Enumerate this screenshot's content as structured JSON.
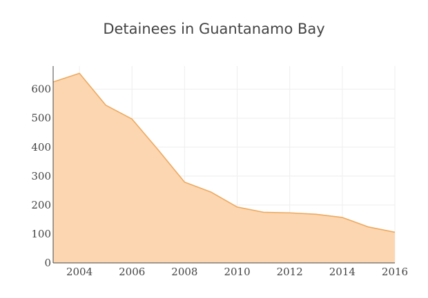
{
  "chart_data": {
    "type": "area",
    "title": "Detainees in Guantanamo Bay",
    "xlabel": "",
    "ylabel": "",
    "x": [
      2003,
      2004,
      2005,
      2006,
      2007,
      2008,
      2009,
      2010,
      2011,
      2012,
      2013,
      2014,
      2015,
      2016
    ],
    "series": [
      {
        "values": [
          625,
          655,
          545,
          497,
          390,
          279,
          245,
          193,
          175,
          173,
          168,
          157,
          124,
          106
        ]
      }
    ],
    "xlim": [
      2003,
      2016
    ],
    "ylim": [
      0,
      680
    ],
    "x_ticks": [
      2004,
      2006,
      2008,
      2010,
      2012,
      2014,
      2016
    ],
    "y_ticks": [
      0,
      100,
      200,
      300,
      400,
      500,
      600
    ],
    "x_tick_labels": [
      "2004",
      "2006",
      "2008",
      "2010",
      "2012",
      "2014",
      "2016"
    ],
    "y_tick_labels": [
      "0",
      "100",
      "200",
      "300",
      "400",
      "500",
      "600"
    ],
    "grid": true,
    "legend": "none",
    "colors": {
      "fill": "#fbd6b1",
      "line": "#eda95e",
      "grid": "#eeeeee",
      "text": "#444444"
    }
  }
}
